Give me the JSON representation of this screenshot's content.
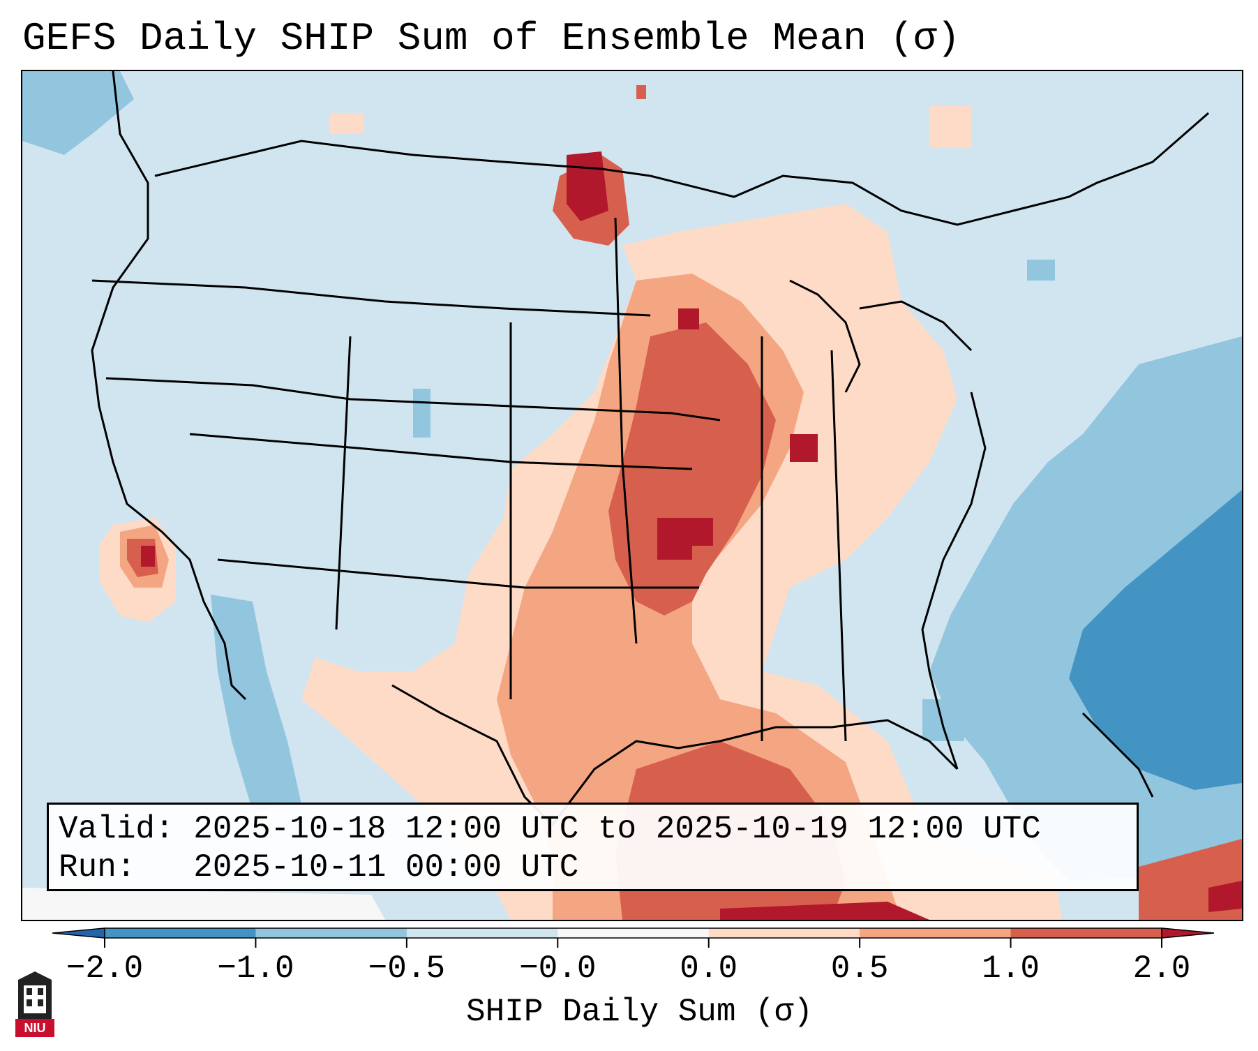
{
  "title": "GEFS Daily SHIP Sum of Ensemble Mean (σ)",
  "info": {
    "valid_label": "Valid:",
    "valid_value": "2025-10-18 12:00 UTC to 2025-10-19 12:00 UTC",
    "run_label": "Run:",
    "run_value": "2025-10-11 00:00 UTC"
  },
  "colorbar": {
    "label": "SHIP Daily Sum (σ)",
    "ticks": [
      "−2.0",
      "−1.0",
      "−0.5",
      "−0.0",
      "0.0",
      "0.5",
      "1.0",
      "2.0"
    ],
    "colors": [
      "#4393c3",
      "#92c5de",
      "#d1e5f0",
      "#f7f7f7",
      "#fddbc7",
      "#f4a582",
      "#d6604d"
    ],
    "under_color": "#2166ac",
    "over_color": "#b2182b"
  },
  "logo": {
    "text": "NIU"
  },
  "map": {
    "background_color": "#d1e5f0",
    "regions": [
      {
        "name": "plains-mississippi-valley",
        "level": "0.0 to 0.5"
      },
      {
        "name": "missouri-arkansas-core",
        "level": "1.0 to 2.0"
      },
      {
        "name": "northern-plains-max",
        "level": "above 2.0"
      },
      {
        "name": "gulf-of-mexico",
        "level": "1.0 to 2.0"
      },
      {
        "name": "western-atlantic",
        "level": "-2.0 to -1.0"
      },
      {
        "name": "southern-california",
        "level": "1.0 to 2.0"
      }
    ]
  }
}
